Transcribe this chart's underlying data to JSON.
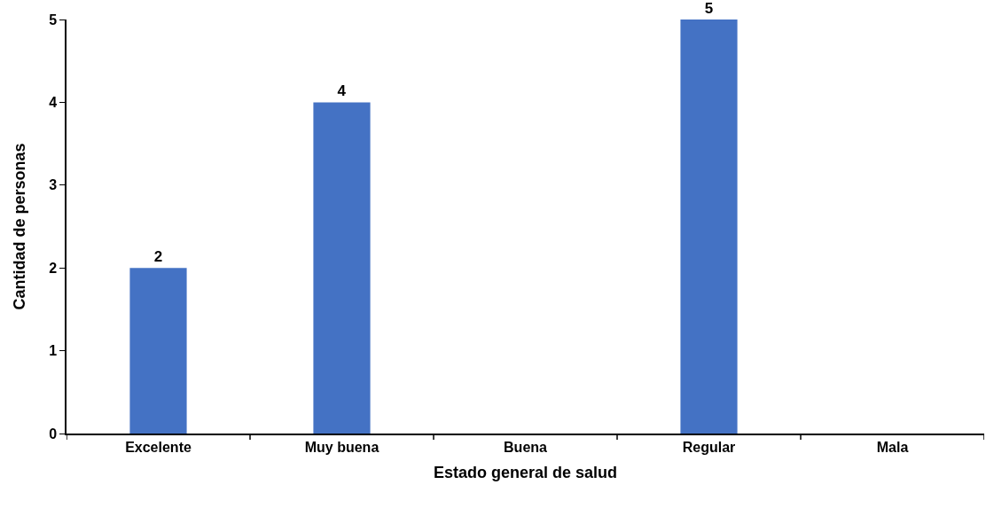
{
  "chart_data": {
    "type": "bar",
    "xlabel": "Estado general de salud",
    "ylabel": "Cantidad de personas",
    "categories": [
      "Excelente",
      "Muy buena",
      "Buena",
      "Regular",
      "Mala"
    ],
    "values": [
      2,
      4,
      0,
      5,
      0
    ],
    "value_labels": [
      "2",
      "4",
      null,
      "5",
      null
    ],
    "color": "#4472c4",
    "ylim": [
      0,
      5
    ],
    "yticks": [
      0,
      1,
      2,
      3,
      4,
      5
    ],
    "grid": false
  }
}
